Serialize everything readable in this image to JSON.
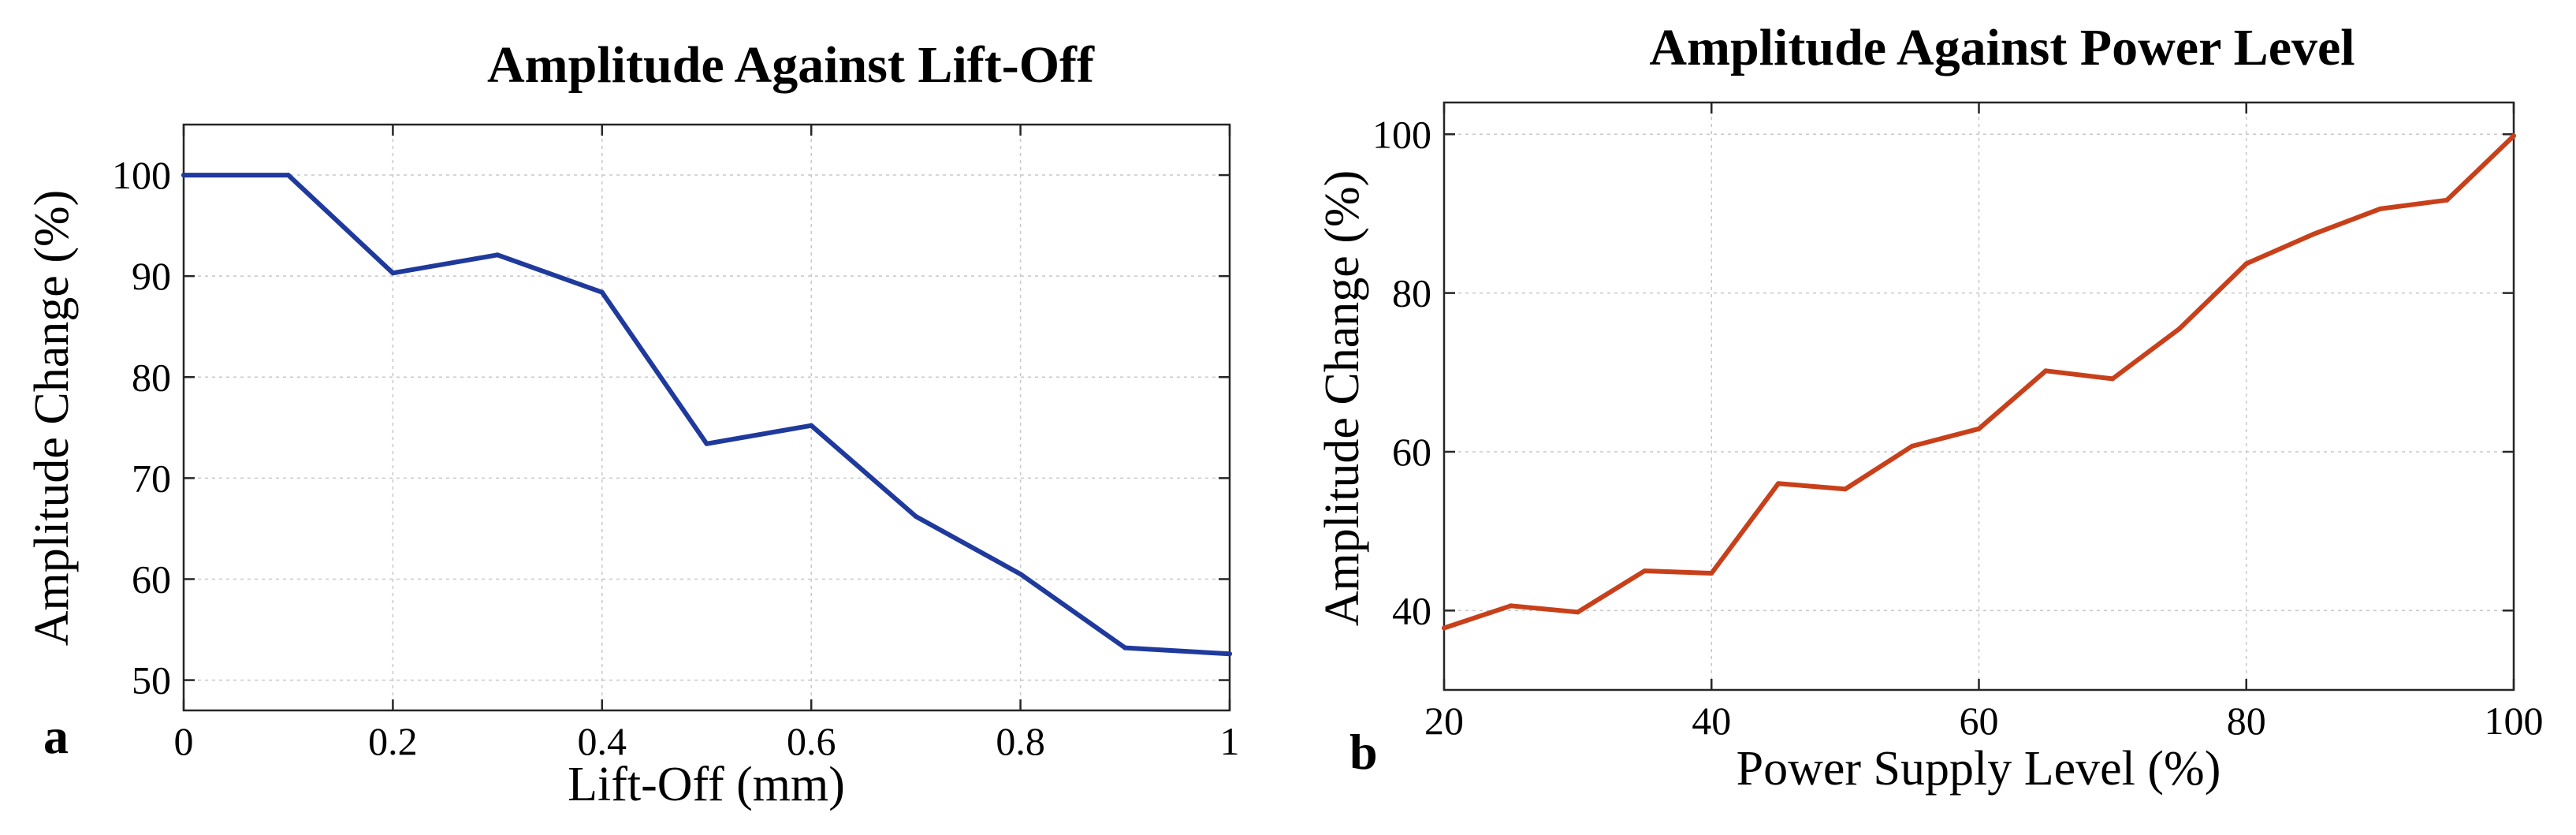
{
  "chart_data": [
    {
      "type": "line",
      "panel_label": "a",
      "title": "Amplitude Against Lift-Off",
      "xlabel": "Lift-Off (mm)",
      "ylabel": "Amplitude Change (%)",
      "xlim": [
        0,
        1
      ],
      "ylim": [
        47,
        105
      ],
      "xticks": [
        0,
        0.2,
        0.4,
        0.6,
        0.8,
        1
      ],
      "xtick_labels": [
        "0",
        "0.2",
        "0.4",
        "0.6",
        "0.8",
        "1"
      ],
      "yticks": [
        50,
        60,
        70,
        80,
        90,
        100
      ],
      "ytick_labels": [
        "50",
        "60",
        "70",
        "80",
        "90",
        "100"
      ],
      "grid": true,
      "series": [
        {
          "name": "Amplitude",
          "color": "#1f3a9c",
          "x": [
            0,
            0.1,
            0.2,
            0.3,
            0.4,
            0.5,
            0.6,
            0.7,
            0.8,
            0.9,
            1.0
          ],
          "y": [
            100,
            100,
            90.3,
            92.1,
            88.4,
            73.4,
            75.2,
            66.2,
            60.5,
            53.2,
            52.6
          ]
        }
      ]
    },
    {
      "type": "line",
      "panel_label": "b",
      "title": "Amplitude Against Power Level",
      "xlabel": "Power Supply Level (%)",
      "ylabel": "Amplitude Change (%)",
      "xlim": [
        20,
        100
      ],
      "ylim": [
        30,
        104
      ],
      "xticks": [
        20,
        40,
        60,
        80,
        100
      ],
      "xtick_labels": [
        "20",
        "40",
        "60",
        "80",
        "100"
      ],
      "yticks": [
        40,
        60,
        80,
        100
      ],
      "ytick_labels": [
        "40",
        "60",
        "80",
        "100"
      ],
      "grid": true,
      "series": [
        {
          "name": "Amplitude",
          "color": "#c8401a",
          "x": [
            20,
            25,
            30,
            35,
            40,
            45,
            50,
            55,
            60,
            65,
            70,
            75,
            80,
            85,
            90,
            95,
            100
          ],
          "y": [
            37.8,
            40.6,
            39.8,
            45.0,
            44.7,
            56.0,
            55.3,
            60.7,
            62.9,
            70.2,
            69.2,
            75.5,
            83.7,
            87.4,
            90.6,
            91.7,
            99.8
          ]
        }
      ]
    }
  ]
}
